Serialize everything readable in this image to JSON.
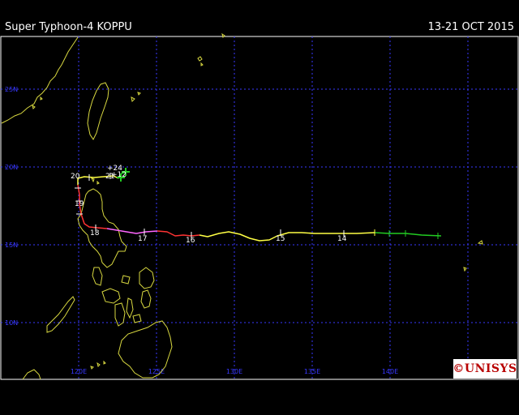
{
  "header": {
    "title": "Super Typhoon-4 KOPPU",
    "dates": "13-21 OCT 2015"
  },
  "map": {
    "lat_labels": [
      "25N",
      "20N",
      "15N",
      "10N"
    ],
    "lon_labels": [
      "120E",
      "125E",
      "130E",
      "135E",
      "140E"
    ],
    "grid_color": "#3838ff",
    "land_color": "#d8d840",
    "frame_color": "#ffffff"
  },
  "track": {
    "day_labels": [
      "14",
      "15",
      "16",
      "17",
      "18",
      "19",
      "20",
      "21"
    ],
    "forecast_labels": [
      "+12",
      "+24"
    ],
    "intensity_colors": {
      "depression": "#22cc22",
      "storm": "#ffff44",
      "typhoon_cat1": "#ff3333",
      "typhoon_cat4": "#ff66ff"
    }
  },
  "logo": {
    "text": "©UNISYS",
    "color": "#b80000"
  }
}
